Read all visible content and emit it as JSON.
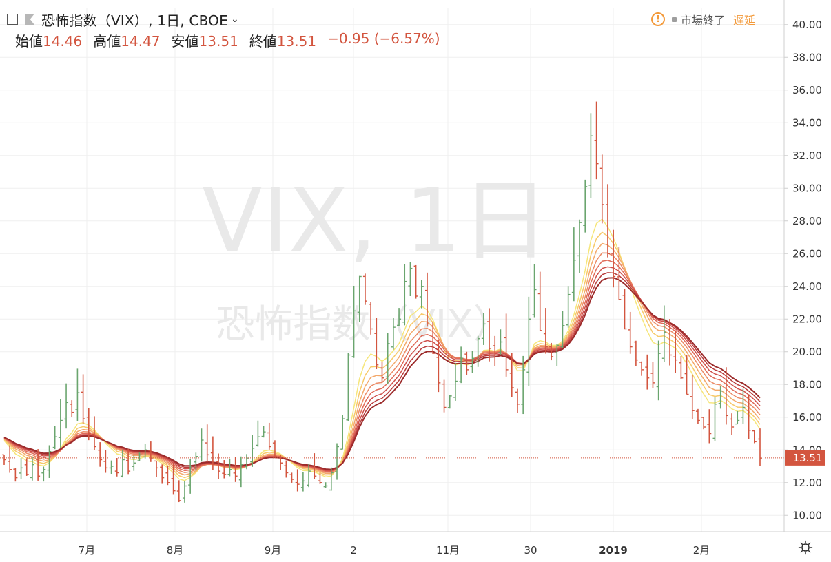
{
  "header": {
    "title": "恐怖指数（VIX）, 1日, CBOE",
    "chevron": "⌄",
    "ohlc": [
      {
        "label": "始値",
        "value": "14.46"
      },
      {
        "label": "高値",
        "value": "14.47"
      },
      {
        "label": "安値",
        "value": "13.51"
      },
      {
        "label": "終値",
        "value": "13.51"
      }
    ],
    "change": "−0.95 (−6.57%)"
  },
  "status": {
    "warning": "!",
    "market": "市場終了",
    "delayed": "遅延"
  },
  "watermark": {
    "line1": "VIX, 1日",
    "line2": "恐怖指数（VIX）"
  },
  "price_tag": "13.51",
  "colors": {
    "up": "#6aa56e",
    "down": "#d3553f",
    "accent": "#f39a3b",
    "ribbon": [
      "#f6e67a",
      "#f7c96a",
      "#f3a86a",
      "#ec8a65",
      "#e06a58",
      "#cf4f4a",
      "#b83a3a",
      "#9c2b2b"
    ]
  },
  "chart_data": {
    "type": "line",
    "symbol": "VIX",
    "ylim": [
      9,
      41
    ],
    "y_ticks": [
      "10.00",
      "12.00",
      "14.00",
      "16.00",
      "18.00",
      "20.00",
      "22.00",
      "24.00",
      "26.00",
      "28.00",
      "30.00",
      "32.00",
      "34.00",
      "36.00",
      "38.00",
      "40.00"
    ],
    "x_ticks": [
      "7月",
      "8月",
      "9月",
      "2",
      "11月",
      "30",
      "2019",
      "2月"
    ],
    "last_value": 13.51,
    "approx_daily_close": [
      13.4,
      12.8,
      12.3,
      12.9,
      12.5,
      13.1,
      12.4,
      12.8,
      13.9,
      14.8,
      15.8,
      16.9,
      16.3,
      17.5,
      15.9,
      15.0,
      14.2,
      13.4,
      12.9,
      13.0,
      12.6,
      13.4,
      12.7,
      13.2,
      13.7,
      14.0,
      13.5,
      12.9,
      12.3,
      12.0,
      11.5,
      10.9,
      11.8,
      13.0,
      13.6,
      14.6,
      13.7,
      13.1,
      12.7,
      12.5,
      12.8,
      12.4,
      13.1,
      13.5,
      14.1,
      14.8,
      15.1,
      14.2,
      13.6,
      13.2,
      12.6,
      12.2,
      11.9,
      12.1,
      12.7,
      12.4,
      12.0,
      11.8,
      12.6,
      14.2,
      15.9,
      19.8,
      22.5,
      24.6,
      23.1,
      21.4,
      19.2,
      18.4,
      20.5,
      21.5,
      22.0,
      24.3,
      25.1,
      23.4,
      24.0,
      21.7,
      19.9,
      18.1,
      16.6,
      17.3,
      18.2,
      19.6,
      18.9,
      19.6,
      20.8,
      21.7,
      20.2,
      19.8,
      20.6,
      18.9,
      17.8,
      16.8,
      18.9,
      22.0,
      23.8,
      21.3,
      20.3,
      19.7,
      20.4,
      21.6,
      23.5,
      25.6,
      27.9,
      30.1,
      33.2,
      31.5,
      29.0,
      26.0,
      24.6,
      23.2,
      21.4,
      20.3,
      19.5,
      18.9,
      18.4,
      18.1,
      19.9,
      21.2,
      19.8,
      19.5,
      18.4,
      17.4,
      16.4,
      15.8,
      15.4,
      15.0,
      16.8,
      17.6,
      16.1,
      15.4,
      15.8,
      16.6,
      15.2,
      14.5,
      13.5
    ],
    "ribbon_periods": [
      "MA1",
      "MA2",
      "MA3",
      "MA4",
      "MA5",
      "MA6",
      "MA7",
      "MA8"
    ]
  }
}
